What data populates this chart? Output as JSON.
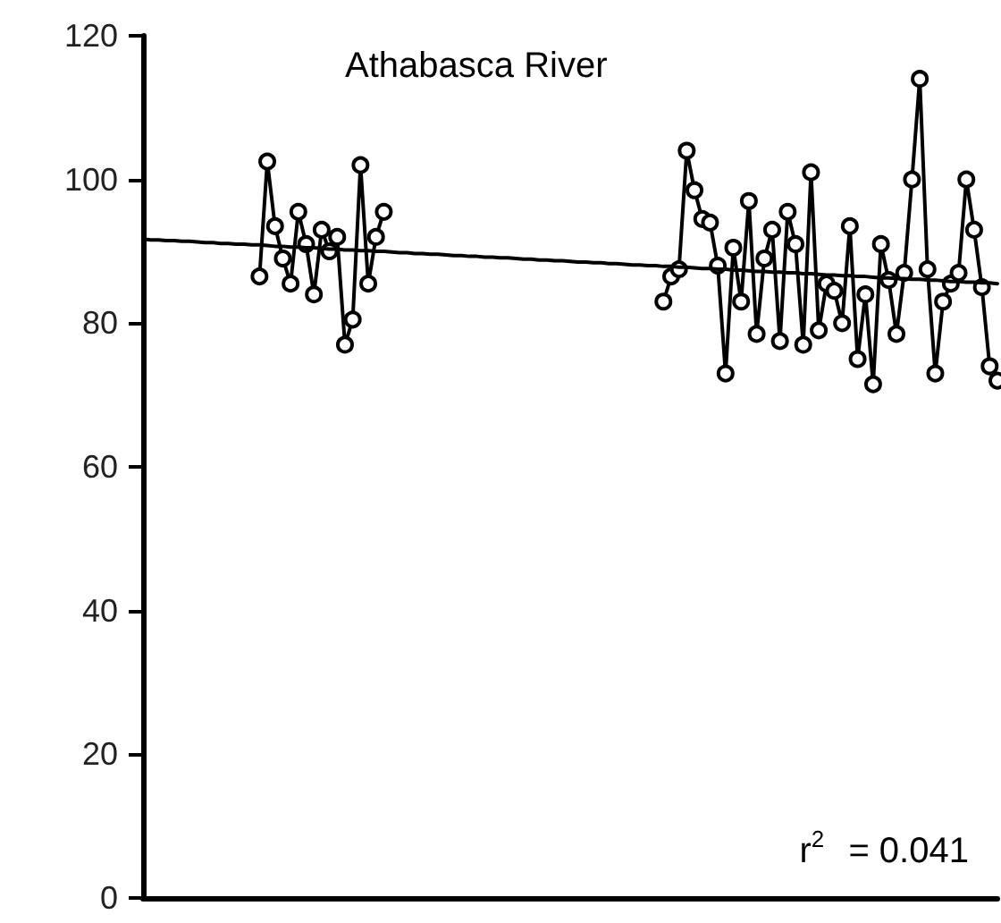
{
  "chart_data": {
    "type": "line",
    "title": "Athabasca River",
    "annotations": [
      "r$^{2}$ = 0.041"
    ],
    "categories": [
      null,
      null,
      null,
      null,
      null,
      null,
      null,
      null,
      null,
      null,
      null,
      null,
      null,
      null,
      null,
      null,
      null,
      null,
      null,
      null,
      null,
      null,
      null,
      null,
      null,
      null,
      null,
      null,
      null,
      null,
      null,
      null,
      null,
      null,
      null,
      null,
      null,
      null,
      null,
      null,
      null,
      null,
      null,
      null,
      null,
      null,
      null,
      null,
      null,
      null,
      null,
      null,
      null,
      null,
      null,
      null,
      null,
      null,
      null,
      null,
      null,
      null,
      null,
      null,
      null,
      null,
      null,
      null,
      null,
      null,
      null,
      null,
      null,
      null,
      null,
      null,
      null,
      null,
      null,
      null,
      null,
      null,
      null,
      null,
      null,
      null,
      null,
      null,
      null,
      null,
      null,
      null,
      null,
      null,
      null,
      null,
      null,
      null,
      null,
      null,
      null,
      null,
      null,
      null,
      null,
      null,
      null,
      null,
      null,
      null,
      null
    ],
    "ylim": [
      0,
      120
    ],
    "yticks": [
      0,
      20,
      40,
      60,
      80,
      100,
      120
    ],
    "tick_labels": "y",
    "marker": "circle",
    "line_style": "solid",
    "series": [
      {
        "color": "#000000",
        "values": [
          null,
          null,
          null,
          null,
          null,
          null,
          null,
          null,
          null,
          null,
          null,
          null,
          null,
          null,
          null,
          86.5,
          102.5,
          93.5,
          89,
          85.5,
          95.5,
          91,
          84,
          93,
          90,
          92,
          77,
          80.5,
          102,
          85.5,
          92,
          95.5,
          null,
          null,
          null,
          null,
          null,
          null,
          null,
          null,
          null,
          null,
          null,
          null,
          null,
          null,
          null,
          null,
          null,
          null,
          null,
          null,
          null,
          null,
          null,
          null,
          null,
          null,
          null,
          null,
          null,
          null,
          null,
          null,
          null,
          null,
          null,
          null,
          null,
          null,
          null,
          null,
          null,
          null,
          null,
          null,
          null,
          null,
          null,
          null,
          null,
          null,
          null,
          null,
          null,
          null,
          null,
          null,
          null,
          null,
          null,
          null,
          null,
          null,
          null,
          null,
          null,
          null,
          null,
          null,
          null,
          null,
          null,
          null,
          null,
          null,
          null,
          null,
          null,
          null,
          null
        ]
      },
      {
        "color": "#000000",
        "values": [
          null,
          null,
          null,
          null,
          null,
          null,
          null,
          null,
          null,
          null,
          null,
          null,
          null,
          null,
          null,
          null,
          null,
          null,
          null,
          null,
          null,
          null,
          null,
          null,
          null,
          null,
          null,
          null,
          null,
          null,
          null,
          null,
          null,
          null,
          null,
          null,
          null,
          null,
          null,
          null,
          null,
          null,
          null,
          null,
          null,
          null,
          null,
          null,
          null,
          null,
          null,
          null,
          null,
          null,
          null,
          null,
          null,
          null,
          null,
          null,
          null,
          null,
          null,
          null,
          null,
          null,
          null,
          83,
          86.5,
          87.5,
          104,
          98.5,
          94.5,
          94,
          88,
          73,
          90.5,
          83,
          97,
          78.5,
          89,
          93,
          77.5,
          95.5,
          91,
          77,
          101,
          79,
          85.5,
          84.5,
          80,
          93.5,
          75,
          84,
          71.5,
          91,
          86,
          78.5,
          87,
          100,
          114,
          87.5,
          73,
          83,
          85.5,
          87,
          100,
          93,
          85,
          74,
          72
        ]
      },
      {
        "color": "#000000",
        "marker": "none",
        "values": [
          91.7,
          91.6,
          91.6,
          91.5,
          91.5,
          91.4,
          91.4,
          91.3,
          91.2,
          91.2,
          91.1,
          91.1,
          91.0,
          91.0,
          90.9,
          90.9,
          90.8,
          90.7,
          90.7,
          90.6,
          90.6,
          90.5,
          90.5,
          90.4,
          90.3,
          90.3,
          90.2,
          90.2,
          90.1,
          90.1,
          90.0,
          90.0,
          89.9,
          89.8,
          89.8,
          89.7,
          89.7,
          89.6,
          89.6,
          89.5,
          89.4,
          89.4,
          89.3,
          89.3,
          89.2,
          89.2,
          89.1,
          89.1,
          89.0,
          88.9,
          88.9,
          88.8,
          88.8,
          88.7,
          88.7,
          88.6,
          88.5,
          88.5,
          88.4,
          88.4,
          88.3,
          88.3,
          88.2,
          88.1,
          88.1,
          88.0,
          88.0,
          87.9,
          87.9,
          87.8,
          87.8,
          87.7,
          87.6,
          87.6,
          87.5,
          87.5,
          87.4,
          87.4,
          87.3,
          87.2,
          87.2,
          87.1,
          87.1,
          87.0,
          87.0,
          86.9,
          86.9,
          86.8,
          86.7,
          86.7,
          86.6,
          86.6,
          86.5,
          86.5,
          86.4,
          86.3,
          86.3,
          86.2,
          86.2,
          86.1,
          86.1,
          86.0,
          86.0,
          85.9,
          85.8,
          85.8,
          85.7,
          85.7,
          85.6,
          85.6,
          85.5
        ]
      }
    ]
  }
}
